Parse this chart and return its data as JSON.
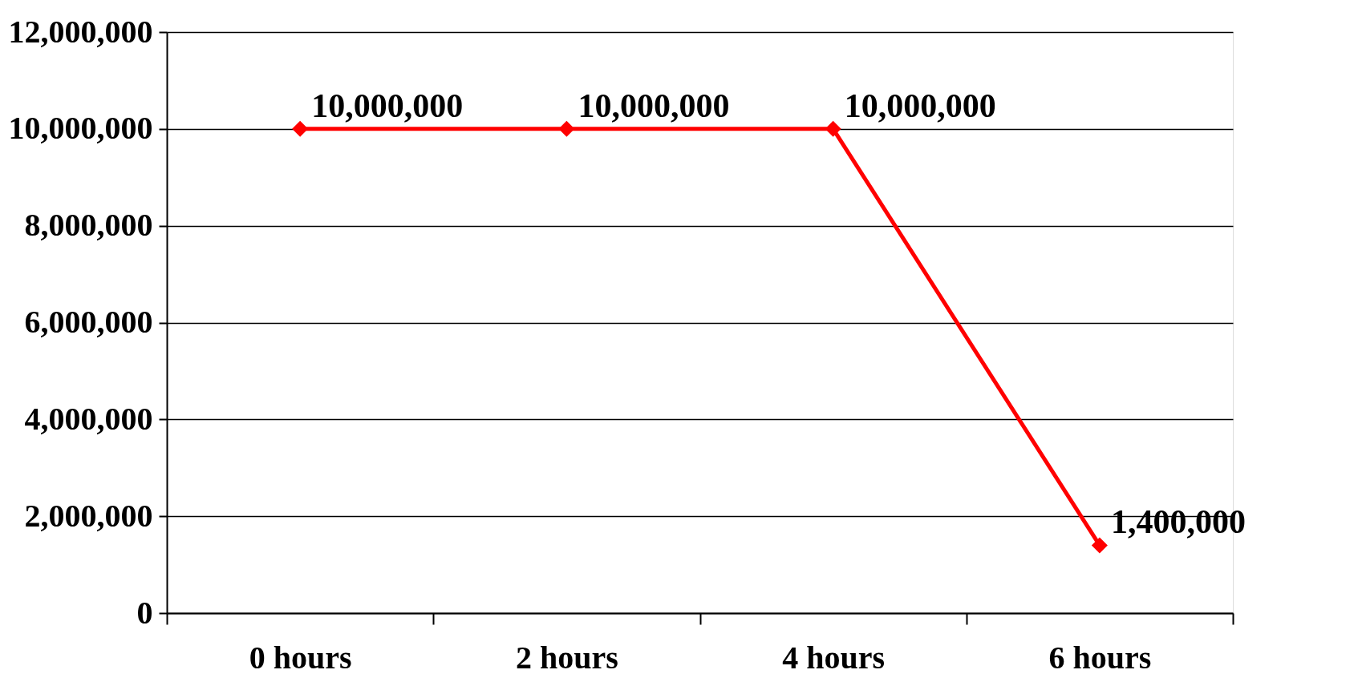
{
  "chart_data": {
    "type": "line",
    "categories": [
      "0 hours",
      "2 hours",
      "4 hours",
      "6 hours"
    ],
    "series": [
      {
        "color": "#ff0000",
        "values": [
          10000000,
          10000000,
          10000000,
          1400000
        ],
        "value_labels": [
          "10,000,000",
          "10,000,000",
          "10,000,000",
          "1,400,000"
        ]
      }
    ],
    "ylim": [
      0,
      12000000
    ],
    "yticks": [
      0,
      {
        "value": 2000000,
        "label": "2,000,000"
      },
      {
        "value": 4000000,
        "label": "4,000,000"
      },
      {
        "value": 6000000,
        "label": "6,000,000"
      },
      {
        "value": 8000000,
        "label": "8,000,000"
      },
      {
        "value": 10000000,
        "label": "10,000,000"
      },
      {
        "value": 12000000,
        "label": "12,000,000"
      }
    ],
    "grid": "y",
    "marker": "diamond",
    "line_style": "solid"
  }
}
